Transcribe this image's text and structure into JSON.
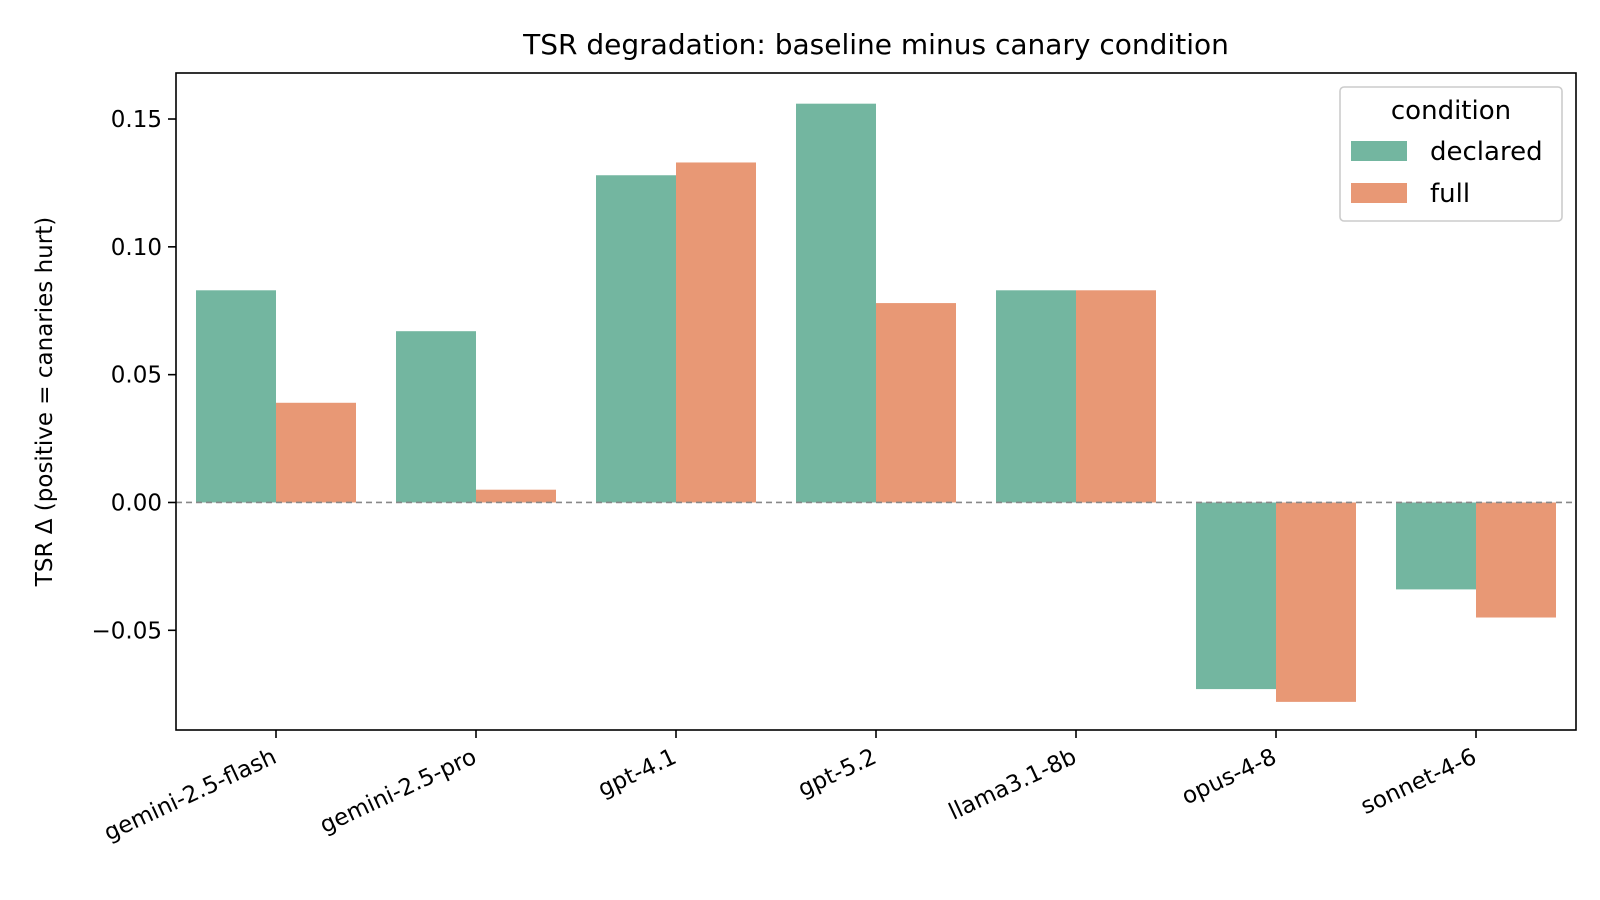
{
  "chart_data": {
    "type": "bar",
    "title": "TSR degradation: baseline minus canary condition",
    "xlabel": "",
    "ylabel": "TSR Δ (positive = canaries hurt)",
    "ylim": [
      -0.089,
      0.168
    ],
    "yticks": [
      -0.05,
      0.0,
      0.05,
      0.1,
      0.15
    ],
    "ytick_labels": [
      "−0.05",
      "0.00",
      "0.05",
      "0.10",
      "0.15"
    ],
    "categories": [
      "gemini-2.5-flash",
      "gemini-2.5-pro",
      "gpt-4.1",
      "gpt-5.2",
      "llama3.1-8b",
      "opus-4-8",
      "sonnet-4-6"
    ],
    "series": [
      {
        "name": "declared",
        "color": "#73b6a0",
        "values": [
          0.083,
          0.067,
          0.128,
          0.156,
          0.083,
          -0.073,
          -0.034
        ]
      },
      {
        "name": "full",
        "color": "#e89875",
        "values": [
          0.039,
          0.005,
          0.133,
          0.078,
          0.083,
          -0.078,
          -0.045
        ]
      }
    ],
    "zero_line": {
      "style": "dashed",
      "color": "#888888"
    },
    "legend": {
      "title": "condition",
      "placement": "top-right"
    },
    "grid": false
  }
}
